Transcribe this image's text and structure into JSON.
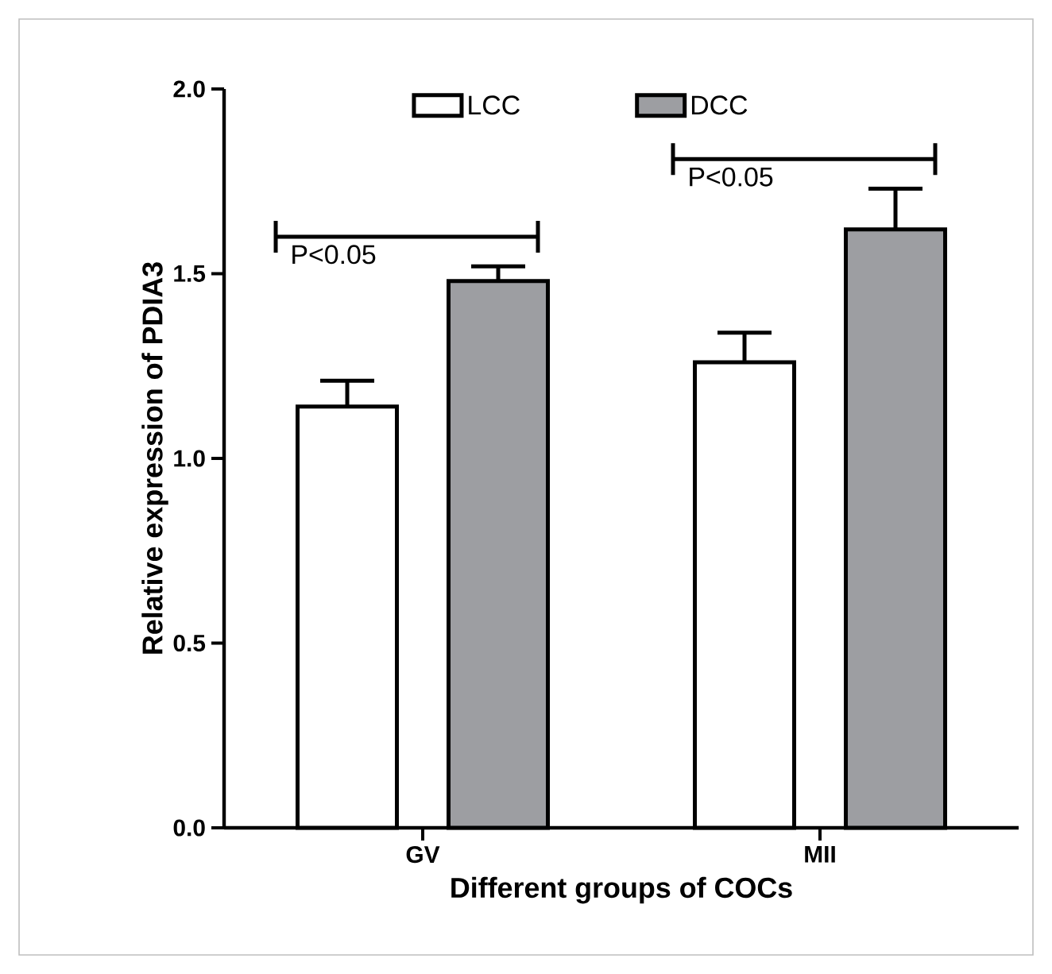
{
  "chart_data": {
    "type": "bar",
    "xlabel": "Different groups of COCs",
    "ylabel": "Relative expression of PDIA3",
    "categories": [
      "GV",
      "MII"
    ],
    "series": [
      {
        "name": "LCC",
        "color": "#ffffff",
        "values": [
          1.14,
          1.26
        ],
        "errors": [
          [
            1.14,
            1.21
          ],
          [
            1.26,
            1.34
          ]
        ]
      },
      {
        "name": "DCC",
        "color": "#9d9ea2",
        "values": [
          1.48,
          1.62
        ],
        "errors": [
          [
            1.48,
            1.52
          ],
          [
            1.62,
            1.73
          ]
        ]
      }
    ],
    "ylim": [
      0,
      2.0
    ],
    "yticks": [
      {
        "value": 0,
        "label": "0.0"
      },
      {
        "value": 0.5,
        "label": "0.5"
      },
      {
        "value": 1.0,
        "label": "1.0"
      },
      {
        "value": 1.5,
        "label": "1.5"
      },
      {
        "value": 2.0,
        "label": "2.0"
      }
    ],
    "legend": "top",
    "grid": false,
    "annotations": [
      "P<0.05",
      "P<0.05"
    ]
  }
}
